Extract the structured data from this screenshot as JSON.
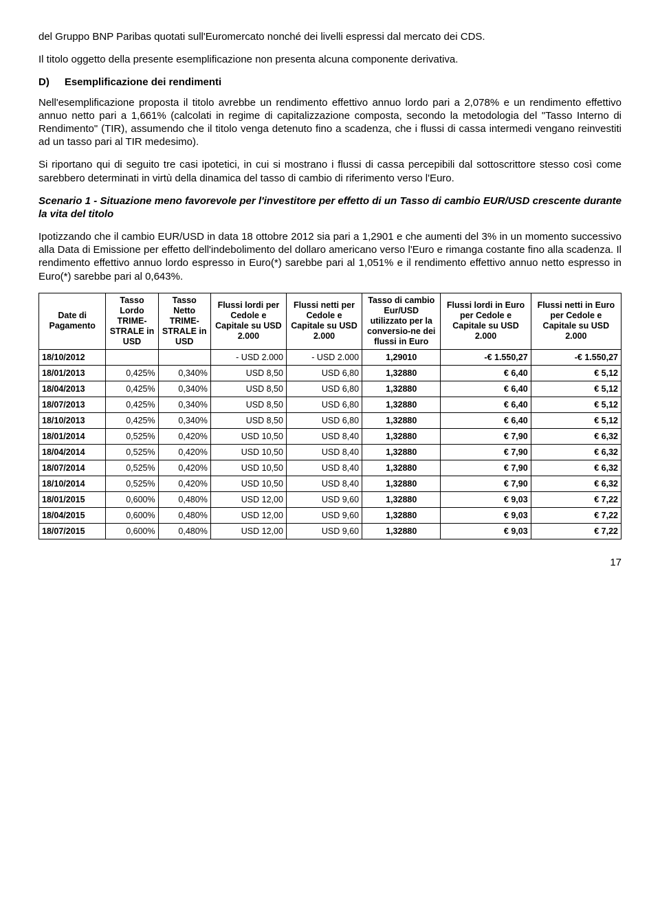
{
  "p1": "del Gruppo BNP Paribas quotati sull'Euromercato nonché dei livelli espressi dal mercato dei CDS.",
  "p2": "Il titolo oggetto della presente esemplificazione non presenta alcuna componente derivativa.",
  "sectionD": {
    "letter": "D)",
    "title": "Esemplificazione dei rendimenti"
  },
  "p3": "Nell'esemplificazione proposta il titolo avrebbe un rendimento effettivo annuo lordo pari a 2,078% e un rendimento effettivo annuo netto pari a 1,661% (calcolati in regime di capitalizzazione composta, secondo la metodologia del \"Tasso Interno di Rendimento\" (TIR), assumendo che il titolo venga detenuto fino a scadenza, che i flussi di cassa intermedi vengano reinvestiti ad un tasso pari al TIR medesimo).",
  "p4": "Si riportano qui di seguito tre casi ipotetici, in cui si mostrano i flussi di cassa percepibili dal sottoscrittore stesso così come sarebbero determinati in virtù della dinamica del tasso di cambio di riferimento verso l'Euro.",
  "scenarioTitle": "Scenario 1 - Situazione meno favorevole per l'investitore per effetto di un Tasso di cambio EUR/USD crescente durante la vita del titolo",
  "p5": "Ipotizzando che il cambio EUR/USD in data 18 ottobre 2012 sia pari a 1,2901 e che aumenti del 3% in un momento successivo alla Data di Emissione per effetto dell'indebolimento del dollaro americano verso l'Euro e rimanga costante fino alla scadenza. Il rendimento effettivo annuo lordo espresso in Euro(*) sarebbe pari al 1,051% e il rendimento effettivo annuo netto espresso in Euro(*) sarebbe pari al 0,643%.",
  "headers": [
    "Date di Pagamento",
    "Tasso Lordo TRIME-STRALE in USD",
    "Tasso Netto TRIME-STRALE in USD",
    "Flussi lordi per Cedole e Capitale su USD 2.000",
    "Flussi netti per Cedole e Capitale su USD 2.000",
    "Tasso di cambio Eur/USD utilizzato per la conversio-ne dei flussi in Euro",
    "Flussi lordi in Euro per Cedole e Capitale su USD 2.000",
    "Flussi netti in Euro per Cedole e Capitale su USD 2.000"
  ],
  "rows": [
    [
      "18/10/2012",
      "",
      "",
      "- USD 2.000",
      "- USD 2.000",
      "1,29010",
      "-€ 1.550,27",
      "-€ 1.550,27"
    ],
    [
      "18/01/2013",
      "0,425%",
      "0,340%",
      "USD 8,50",
      "USD 6,80",
      "1,32880",
      "€ 6,40",
      "€ 5,12"
    ],
    [
      "18/04/2013",
      "0,425%",
      "0,340%",
      "USD 8,50",
      "USD 6,80",
      "1,32880",
      "€ 6,40",
      "€ 5,12"
    ],
    [
      "18/07/2013",
      "0,425%",
      "0,340%",
      "USD 8,50",
      "USD 6,80",
      "1,32880",
      "€ 6,40",
      "€ 5,12"
    ],
    [
      "18/10/2013",
      "0,425%",
      "0,340%",
      "USD 8,50",
      "USD 6,80",
      "1,32880",
      "€ 6,40",
      "€ 5,12"
    ],
    [
      "18/01/2014",
      "0,525%",
      "0,420%",
      "USD 10,50",
      "USD 8,40",
      "1,32880",
      "€ 7,90",
      "€ 6,32"
    ],
    [
      "18/04/2014",
      "0,525%",
      "0,420%",
      "USD 10,50",
      "USD 8,40",
      "1,32880",
      "€ 7,90",
      "€ 6,32"
    ],
    [
      "18/07/2014",
      "0,525%",
      "0,420%",
      "USD 10,50",
      "USD 8,40",
      "1,32880",
      "€ 7,90",
      "€ 6,32"
    ],
    [
      "18/10/2014",
      "0,525%",
      "0,420%",
      "USD 10,50",
      "USD 8,40",
      "1,32880",
      "€ 7,90",
      "€ 6,32"
    ],
    [
      "18/01/2015",
      "0,600%",
      "0,480%",
      "USD 12,00",
      "USD 9,60",
      "1,32880",
      "€ 9,03",
      "€ 7,22"
    ],
    [
      "18/04/2015",
      "0,600%",
      "0,480%",
      "USD 12,00",
      "USD 9,60",
      "1,32880",
      "€ 9,03",
      "€ 7,22"
    ],
    [
      "18/07/2015",
      "0,600%",
      "0,480%",
      "USD 12,00",
      "USD 9,60",
      "1,32880",
      "€ 9,03",
      "€ 7,22"
    ]
  ],
  "pageNumber": "17"
}
